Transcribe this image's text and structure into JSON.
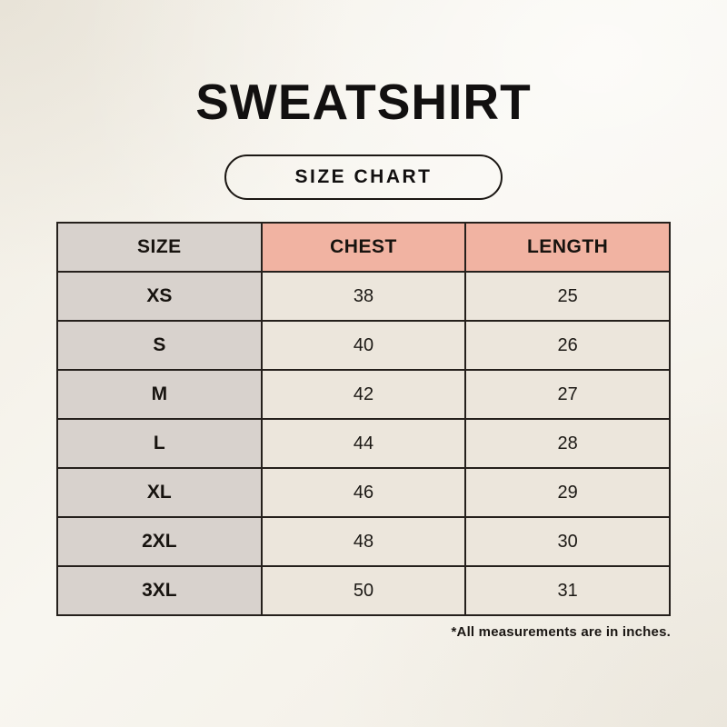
{
  "page": {
    "title": "SWEATSHIRT",
    "size_chart_badge": "SIZE CHART",
    "footnote": "*All measurements are in inches."
  },
  "chart_data": {
    "type": "table",
    "title": "SWEATSHIRT",
    "subtitle": "SIZE CHART",
    "columns": [
      "SIZE",
      "CHEST",
      "LENGTH"
    ],
    "rows": [
      [
        "XS",
        "38",
        "25"
      ],
      [
        "S",
        "40",
        "26"
      ],
      [
        "M",
        "42",
        "27"
      ],
      [
        "L",
        "44",
        "28"
      ],
      [
        "XL",
        "46",
        "29"
      ],
      [
        "2XL",
        "48",
        "30"
      ],
      [
        "3XL",
        "50",
        "31"
      ]
    ],
    "units": "inches",
    "note": "*All measurements are in inches."
  },
  "colors": {
    "background": "#f5f2ea",
    "table_border": "#25201c",
    "header_accent": "#f1b3a2",
    "size_column": "#d8d2cd",
    "data_cell": "#ece6dc",
    "text": "#17130f"
  }
}
